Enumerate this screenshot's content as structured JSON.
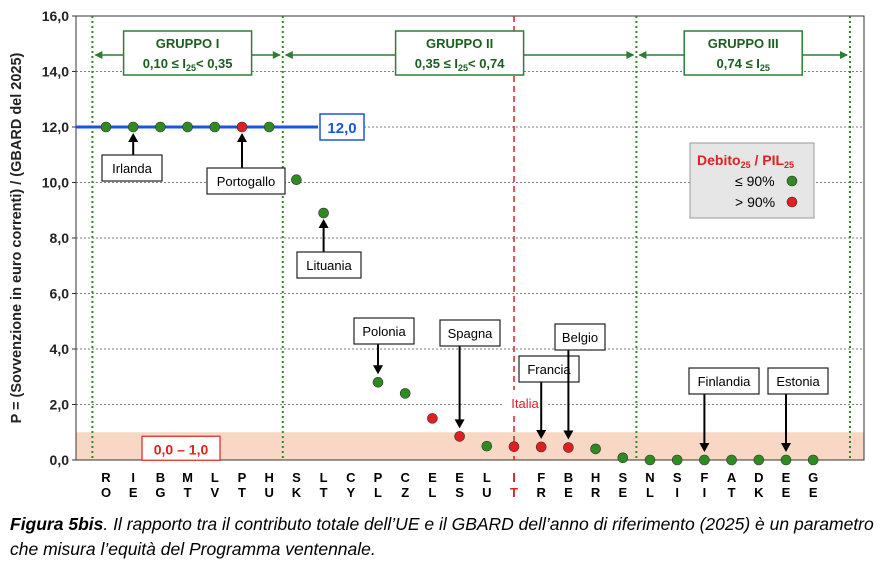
{
  "chart_data": {
    "type": "scatter",
    "ylabel": "P = (Sovvenzione in euro correnti) / (GBARD del 2025)",
    "ylim": [
      0,
      16
    ],
    "yticks": [
      "0,0",
      "2,0",
      "4,0",
      "6,0",
      "8,0",
      "10,0",
      "12,0",
      "14,0",
      "16,0"
    ],
    "grid": true,
    "countries": [
      {
        "code": [
          "R",
          "O"
        ],
        "y": 12.0,
        "color": "green"
      },
      {
        "code": [
          "I",
          "E"
        ],
        "y": 12.0,
        "color": "green"
      },
      {
        "code": [
          "B",
          "G"
        ],
        "y": 12.0,
        "color": "green"
      },
      {
        "code": [
          "M",
          "T"
        ],
        "y": 12.0,
        "color": "green"
      },
      {
        "code": [
          "L",
          "V"
        ],
        "y": 12.0,
        "color": "green"
      },
      {
        "code": [
          "P",
          "T"
        ],
        "y": 12.0,
        "color": "red"
      },
      {
        "code": [
          "H",
          "U"
        ],
        "y": 12.0,
        "color": "green"
      },
      {
        "code": [
          "S",
          "K"
        ],
        "y": 10.1,
        "color": "green"
      },
      {
        "code": [
          "L",
          "T"
        ],
        "y": 8.9,
        "color": "green"
      },
      {
        "code": [
          "C",
          "Y"
        ],
        "y": null,
        "color": "none"
      },
      {
        "code": [
          "P",
          "L"
        ],
        "y": 2.8,
        "color": "green"
      },
      {
        "code": [
          "C",
          "Z"
        ],
        "y": 2.4,
        "color": "green"
      },
      {
        "code": [
          "E",
          "L"
        ],
        "y": 1.5,
        "color": "red"
      },
      {
        "code": [
          "E",
          "S"
        ],
        "y": 0.85,
        "color": "red"
      },
      {
        "code": [
          "L",
          "U"
        ],
        "y": 0.5,
        "color": "green"
      },
      {
        "code": [
          "I",
          "T"
        ],
        "y": 0.48,
        "color": "red",
        "highlight": true
      },
      {
        "code": [
          "F",
          "R"
        ],
        "y": 0.47,
        "color": "red"
      },
      {
        "code": [
          "B",
          "E"
        ],
        "y": 0.45,
        "color": "red"
      },
      {
        "code": [
          "H",
          "R"
        ],
        "y": 0.4,
        "color": "green"
      },
      {
        "code": [
          "S",
          "E"
        ],
        "y": 0.08,
        "color": "green"
      },
      {
        "code": [
          "N",
          "L"
        ],
        "y": 0.0,
        "color": "green"
      },
      {
        "code": [
          "S",
          "I"
        ],
        "y": 0.0,
        "color": "green"
      },
      {
        "code": [
          "F",
          "I"
        ],
        "y": 0.0,
        "color": "green"
      },
      {
        "code": [
          "A",
          "T"
        ],
        "y": 0.0,
        "color": "green"
      },
      {
        "code": [
          "D",
          "K"
        ],
        "y": 0.0,
        "color": "green"
      },
      {
        "code": [
          "E",
          "E"
        ],
        "y": 0.0,
        "color": "green"
      },
      {
        "code": [
          "G",
          "E"
        ],
        "y": 0.0,
        "color": "green"
      }
    ],
    "reference_line": {
      "value": 12.0,
      "label": "12,0",
      "color": "#1a56db"
    },
    "band": {
      "from": 0.0,
      "to": 1.0,
      "label": "0,0 – 1,0",
      "color": "#f8d8c4"
    },
    "groups": [
      {
        "name": "GRUPPO I",
        "pre": "0,10 ≤ I",
        "sub1": "25",
        "mid": "< 0,35",
        "sub2": "",
        "post": "",
        "from": 0,
        "to": 7
      },
      {
        "name": "GRUPPO II",
        "pre": "0,35 ≤ I",
        "sub1": "25",
        "mid": "< 0,74",
        "sub2": "",
        "post": "",
        "from": 7,
        "to": 20
      },
      {
        "name": "GRUPPO III",
        "pre": "0,74 ≤ I",
        "sub1": "25",
        "mid": "",
        "sub2": "",
        "post": "",
        "from": 20,
        "to": 27
      }
    ],
    "italy_line_color": "#e02020",
    "annotations": [
      {
        "text": "Irlanda",
        "target": 1,
        "dir": "down",
        "highlight": false
      },
      {
        "text": "Portogallo",
        "target": 5,
        "dir": "down",
        "highlight": false
      },
      {
        "text": "Lituania",
        "target": 8,
        "dir": "down",
        "highlight": false
      },
      {
        "text": "Polonia",
        "target": 10,
        "dir": "up",
        "highlight": false
      },
      {
        "text": "Spagna",
        "target": 13,
        "dir": "up",
        "highlight": false
      },
      {
        "text": "Italia",
        "target": 15,
        "dir": "none",
        "highlight": true
      },
      {
        "text": "Francia",
        "target": 16,
        "dir": "up",
        "highlight": false
      },
      {
        "text": "Belgio",
        "target": 17,
        "dir": "up",
        "highlight": false
      },
      {
        "text": "Finlandia",
        "target": 22,
        "dir": "up",
        "highlight": false
      },
      {
        "text": "Estonia",
        "target": 25,
        "dir": "up",
        "highlight": false
      }
    ],
    "legend": {
      "title": "Debito",
      "title_sub": "25",
      "title_mid": " / PIL",
      "title_sub2": "25",
      "items": [
        {
          "label": "≤ 90%",
          "color": "#2e8b20"
        },
        {
          "label": "> 90%",
          "color": "#e02020"
        }
      ],
      "placement": "right"
    },
    "colors": {
      "green": "#2e8b20",
      "red": "#e02020",
      "group_border": "#2e7d32",
      "group_text": "#1b5e20"
    }
  },
  "caption": {
    "label": "Figura 5bis",
    "text": ". Il rapporto tra il contributo totale dell’UE e il GBARD dell’anno di riferimento (2025) è un parametro che misura l’equità del Programma ventennale."
  }
}
